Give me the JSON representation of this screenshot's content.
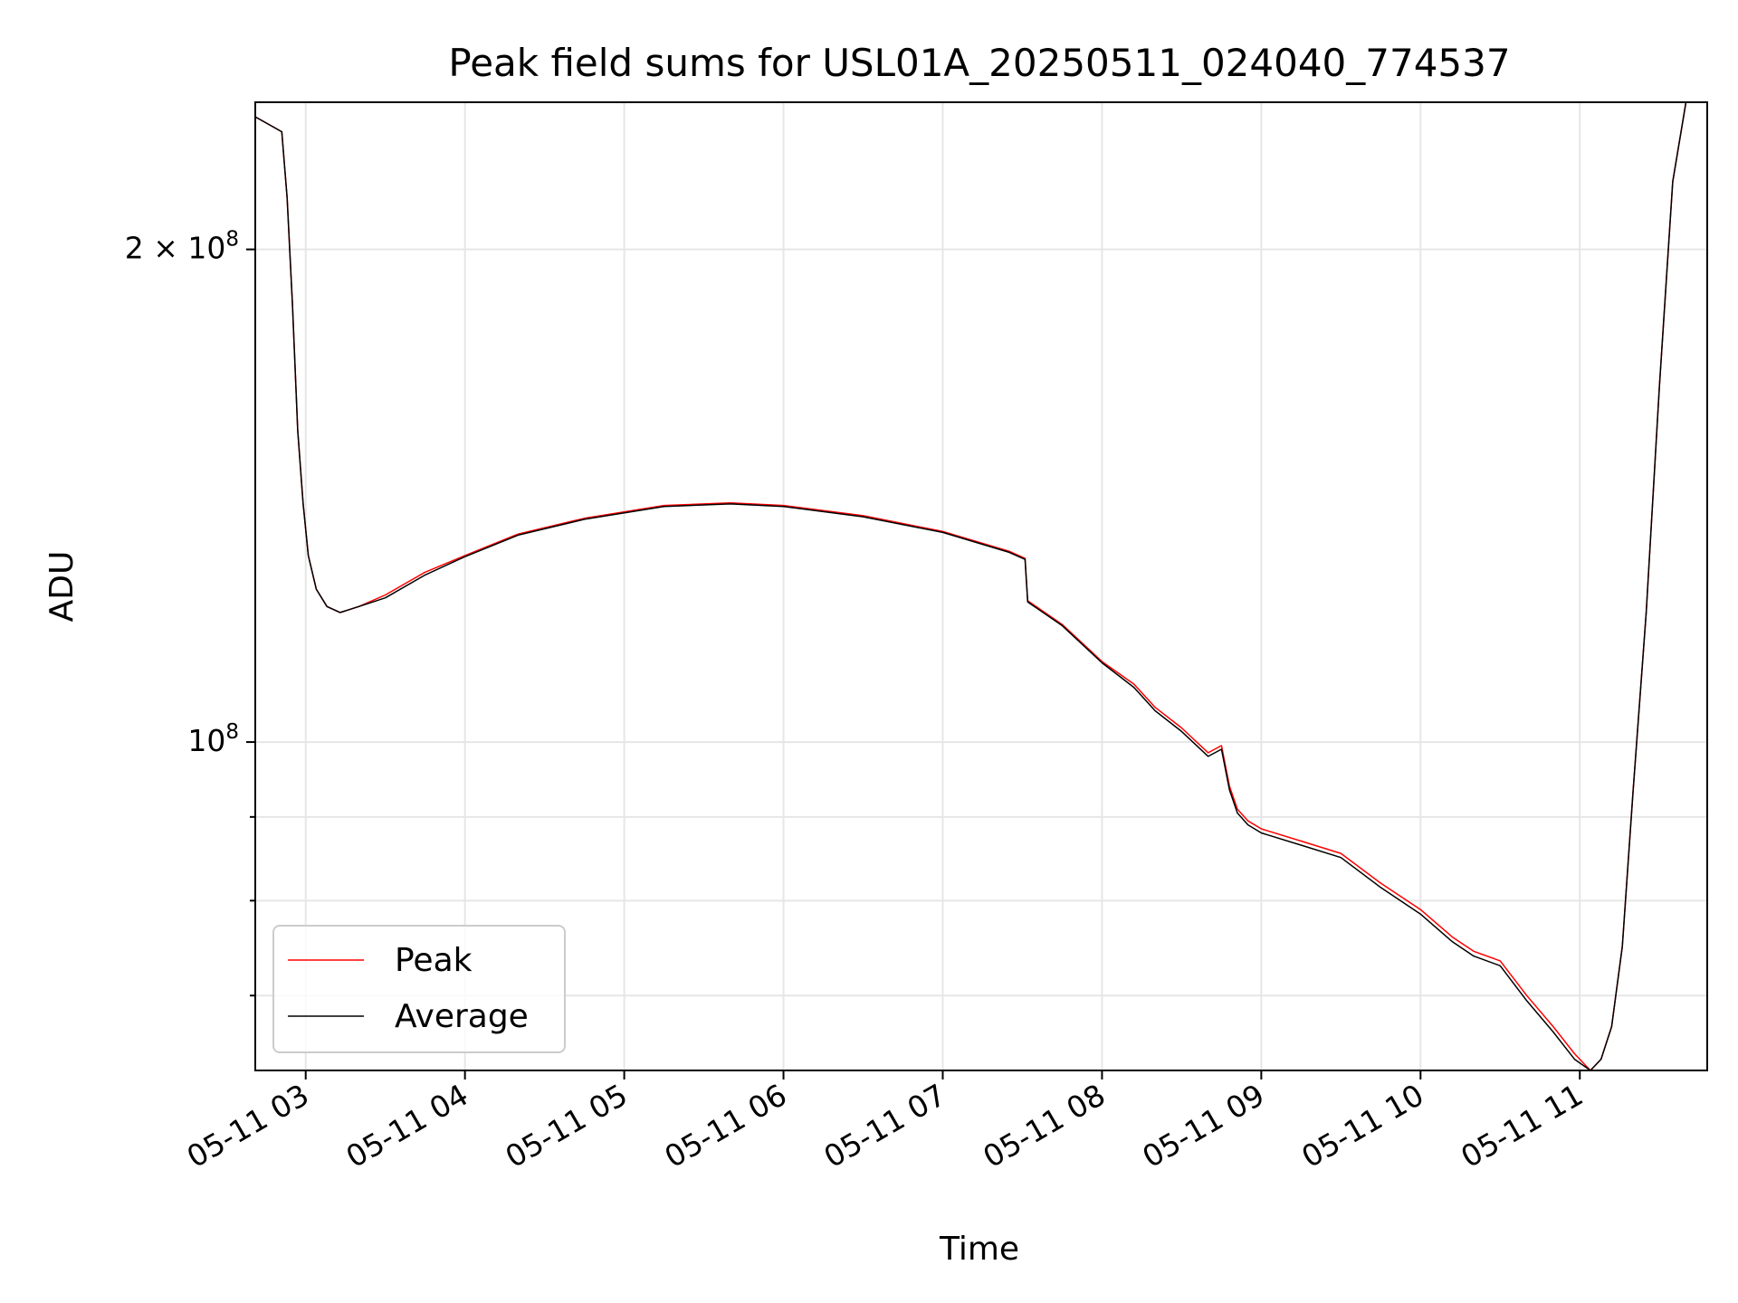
{
  "chart_data": {
    "type": "line",
    "title": "Peak field sums for USL01A_20250511_024040_774537",
    "xlabel": "Time",
    "ylabel": "ADU",
    "x_type": "datetime",
    "xlim": [
      "2025-05-11 02:41",
      "2025-05-11 11:48"
    ],
    "ylim": [
      63000000,
      246000000
    ],
    "yscale": "log",
    "grid": true,
    "legend": "lower-left",
    "x_ticks": [
      "2025-05-11 03:00",
      "2025-05-11 04:00",
      "2025-05-11 05:00",
      "2025-05-11 06:00",
      "2025-05-11 07:00",
      "2025-05-11 08:00",
      "2025-05-11 09:00",
      "2025-05-11 10:00",
      "2025-05-11 11:00"
    ],
    "x_tick_labels": [
      "05-11 03",
      "05-11 04",
      "05-11 05",
      "05-11 06",
      "05-11 07",
      "05-11 08",
      "05-11 09",
      "05-11 10",
      "05-11 11"
    ],
    "y_major_ticks": [
      100000000,
      200000000
    ],
    "y_major_tick_labels": [
      {
        "mantissa": "",
        "base": "10",
        "exp": "8"
      },
      {
        "mantissa": "2 × ",
        "base": "10",
        "exp": "8"
      }
    ],
    "y_minor_ticks": [
      70000000,
      80000000,
      90000000
    ],
    "x": [
      "2025-05-11 02:41",
      "2025-05-11 02:47",
      "2025-05-11 02:51",
      "2025-05-11 02:53",
      "2025-05-11 02:55",
      "2025-05-11 02:57",
      "2025-05-11 02:59",
      "2025-05-11 03:01",
      "2025-05-11 03:04",
      "2025-05-11 03:08",
      "2025-05-11 03:13",
      "2025-05-11 03:20",
      "2025-05-11 03:30",
      "2025-05-11 03:45",
      "2025-05-11 04:00",
      "2025-05-11 04:20",
      "2025-05-11 04:45",
      "2025-05-11 05:15",
      "2025-05-11 05:40",
      "2025-05-11 06:00",
      "2025-05-11 06:30",
      "2025-05-11 07:00",
      "2025-05-11 07:25",
      "2025-05-11 07:31",
      "2025-05-11 07:32",
      "2025-05-11 07:45",
      "2025-05-11 08:00",
      "2025-05-11 08:12",
      "2025-05-11 08:20",
      "2025-05-11 08:30",
      "2025-05-11 08:40",
      "2025-05-11 08:45",
      "2025-05-11 08:48",
      "2025-05-11 08:51",
      "2025-05-11 08:55",
      "2025-05-11 09:00",
      "2025-05-11 09:15",
      "2025-05-11 09:30",
      "2025-05-11 09:45",
      "2025-05-11 10:00",
      "2025-05-11 10:12",
      "2025-05-11 10:20",
      "2025-05-11 10:30",
      "2025-05-11 10:40",
      "2025-05-11 10:50",
      "2025-05-11 10:58",
      "2025-05-11 11:04",
      "2025-05-11 11:08",
      "2025-05-11 11:12",
      "2025-05-11 11:16",
      "2025-05-11 11:20",
      "2025-05-11 11:25",
      "2025-05-11 11:30",
      "2025-05-11 11:35",
      "2025-05-11 11:40",
      "2025-05-11 11:45",
      "2025-05-11 11:48"
    ],
    "series": [
      {
        "name": "Peak",
        "color": "#ff0000",
        "values": [
          241000000,
          238000000,
          236000000,
          215000000,
          185000000,
          155000000,
          140000000,
          130000000,
          124000000,
          121000000,
          120000000,
          121000000,
          123000000,
          127000000,
          130000000,
          134000000,
          137000000,
          139500000,
          140000000,
          139500000,
          137500000,
          134500000,
          130800000,
          129500000,
          122000000,
          118000000,
          112000000,
          108500000,
          105000000,
          102000000,
          98500000,
          99500000,
          94000000,
          91000000,
          89500000,
          88500000,
          87000000,
          85500000,
          82000000,
          79000000,
          76000000,
          74500000,
          73500000,
          70000000,
          67000000,
          64500000,
          63000000,
          64000000,
          67000000,
          75000000,
          93000000,
          120000000,
          165000000,
          220000000,
          246000000,
          246000000,
          246000000
        ]
      },
      {
        "name": "Average",
        "color": "#000000",
        "values": [
          241000000,
          238000000,
          236000000,
          215000000,
          185000000,
          155000000,
          140000000,
          130000000,
          124000000,
          121000000,
          120000000,
          121000000,
          122500000,
          126500000,
          129800000,
          133800000,
          136800000,
          139300000,
          139800000,
          139300000,
          137300000,
          134300000,
          130600000,
          129300000,
          121800000,
          117800000,
          111800000,
          108000000,
          104500000,
          101500000,
          98000000,
          99000000,
          93500000,
          90500000,
          89000000,
          88000000,
          86500000,
          85000000,
          81500000,
          78500000,
          75500000,
          74000000,
          73000000,
          69500000,
          66500000,
          64000000,
          63000000,
          64000000,
          67000000,
          75000000,
          93000000,
          120000000,
          165000000,
          220000000,
          246000000,
          246000000,
          246000000
        ]
      }
    ]
  }
}
